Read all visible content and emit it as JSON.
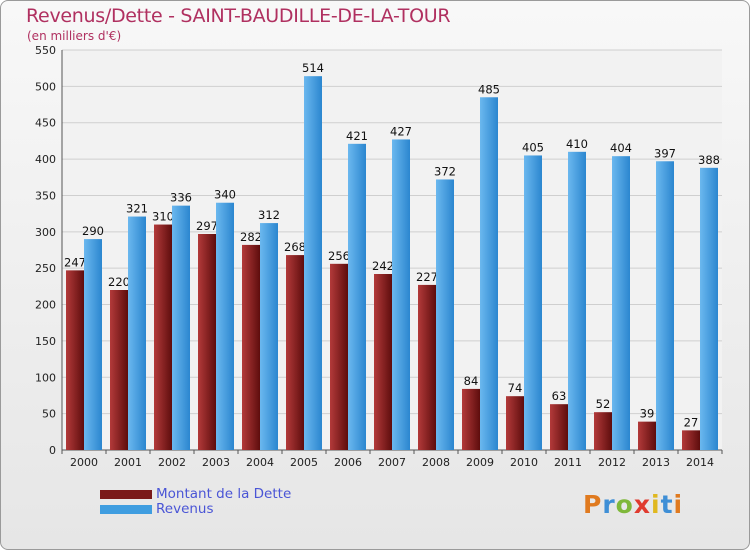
{
  "header": {
    "title": "Revenus/Dette - SAINT-BAUDILLE-DE-LA-TOUR",
    "subtitle": "(en milliers d'€)"
  },
  "colors": {
    "title": "#b03060",
    "dette": "#7a1a1a",
    "revenus": "#3f9de0",
    "grid": "#cfcfcf",
    "legend_text": "#4a55d6"
  },
  "legend": {
    "items": [
      {
        "label": "Montant de la Dette",
        "color": "#7a1a1a"
      },
      {
        "label": "Revenus",
        "color": "#3f9de0"
      }
    ]
  },
  "logo": {
    "text": "Proxiti"
  },
  "chart_data": {
    "type": "bar",
    "title": "Revenus/Dette - SAINT-BAUDILLE-DE-LA-TOUR",
    "ylabel": "(en milliers d'€)",
    "xlabel": "",
    "categories": [
      "2000",
      "2001",
      "2002",
      "2003",
      "2004",
      "2005",
      "2006",
      "2007",
      "2008",
      "2009",
      "2010",
      "2011",
      "2012",
      "2013",
      "2014"
    ],
    "series": [
      {
        "name": "Montant de la Dette",
        "values": [
          247,
          220,
          310,
          297,
          282,
          268,
          256,
          242,
          227,
          84,
          74,
          63,
          52,
          39,
          27
        ]
      },
      {
        "name": "Revenus",
        "values": [
          290,
          321,
          336,
          340,
          312,
          514,
          421,
          427,
          372,
          485,
          405,
          410,
          404,
          397,
          388
        ]
      }
    ],
    "ylim": [
      0,
      550
    ],
    "yticks": [
      0,
      50,
      100,
      150,
      200,
      250,
      300,
      350,
      400,
      450,
      500,
      550
    ],
    "grid": true,
    "legend_position": "bottom-left"
  }
}
